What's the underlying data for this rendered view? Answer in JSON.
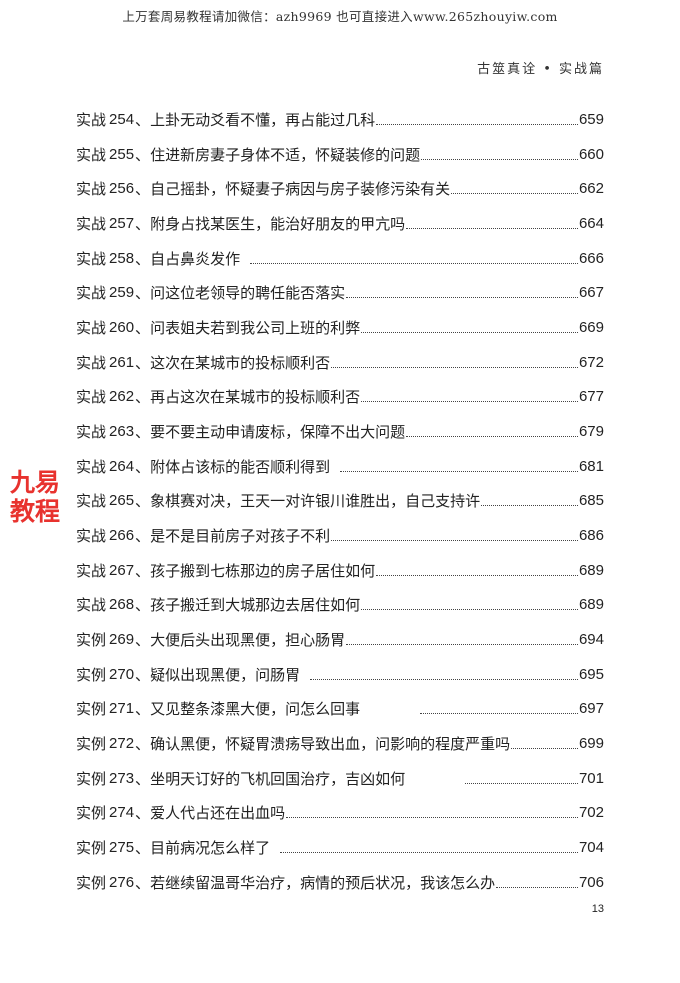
{
  "banner": "上万套周易教程请加微信：azh9969   也可直接进入www.265zhouyiw.com",
  "header": "古筮真诠 • 实战篇",
  "watermark": "九易教程",
  "page_number": "13",
  "colors": {
    "watermark": "#e8322e"
  },
  "entries": [
    {
      "prefix": "实战",
      "num": "254",
      "title": "上卦无动爻看不懂，再占能过几科",
      "page": "659"
    },
    {
      "prefix": "实战",
      "num": "255",
      "title": "住进新房妻子身体不适，怀疑装修的问题",
      "page": "660"
    },
    {
      "prefix": "实战",
      "num": "256",
      "title": "自己摇卦，怀疑妻子病因与房子装修污染有关",
      "page": "662"
    },
    {
      "prefix": "实战",
      "num": "257",
      "title": "附身占找某医生，能治好朋友的甲亢吗",
      "page": "664"
    },
    {
      "prefix": "实战",
      "num": "258",
      "title": "自占鼻炎发作",
      "page": "666"
    },
    {
      "prefix": "实战",
      "num": "259",
      "title": "问这位老领导的聘任能否落实",
      "page": "667"
    },
    {
      "prefix": "实战",
      "num": "260",
      "title": "问表姐夫若到我公司上班的利弊",
      "page": "669"
    },
    {
      "prefix": "实战",
      "num": "261",
      "title": "这次在某城市的投标顺利否",
      "page": "672"
    },
    {
      "prefix": "实战",
      "num": "262",
      "title": "再占这次在某城市的投标顺利否",
      "page": "677"
    },
    {
      "prefix": "实战",
      "num": "263",
      "title": "要不要主动申请废标，保障不出大问题",
      "page": "679"
    },
    {
      "prefix": "实战",
      "num": "264",
      "title": "附体占该标的能否顺利得到",
      "page": "681"
    },
    {
      "prefix": "实战",
      "num": "265",
      "title": "象棋赛对决，王天一对许银川谁胜出，自己支持许",
      "page": "685"
    },
    {
      "prefix": "实战",
      "num": "266",
      "title": "是不是目前房子对孩子不利",
      "page": "686"
    },
    {
      "prefix": "实战",
      "num": "267",
      "title": "孩子搬到七栋那边的房子居住如何",
      "page": "689"
    },
    {
      "prefix": "实战",
      "num": "268",
      "title": "孩子搬迁到大城那边去居住如何",
      "page": "689"
    },
    {
      "prefix": "实例",
      "num": "269",
      "title": "大便后头出现黑便，担心肠胃",
      "page": "694"
    },
    {
      "prefix": "实例",
      "num": "270",
      "title": "疑似出现黑便，问肠胃",
      "page": "695"
    },
    {
      "prefix": "实例",
      "num": "271",
      "title": "又见整条漆黑大便，问怎么回事",
      "page": "697"
    },
    {
      "prefix": "实例",
      "num": "272",
      "title": "确认黑便，怀疑胃溃疡导致出血，问影响的程度严重吗",
      "page": "699"
    },
    {
      "prefix": "实例",
      "num": "273",
      "title": "坐明天订好的飞机回国治疗，吉凶如何",
      "page": "701"
    },
    {
      "prefix": "实例",
      "num": "274",
      "title": "爱人代占还在出血吗",
      "page": "702"
    },
    {
      "prefix": "实例",
      "num": "275",
      "title": "目前病况怎么样了",
      "page": "704"
    },
    {
      "prefix": "实例",
      "num": "276",
      "title": "若继续留温哥华治疗，病情的预后状况，我该怎么办",
      "page": "706"
    }
  ]
}
